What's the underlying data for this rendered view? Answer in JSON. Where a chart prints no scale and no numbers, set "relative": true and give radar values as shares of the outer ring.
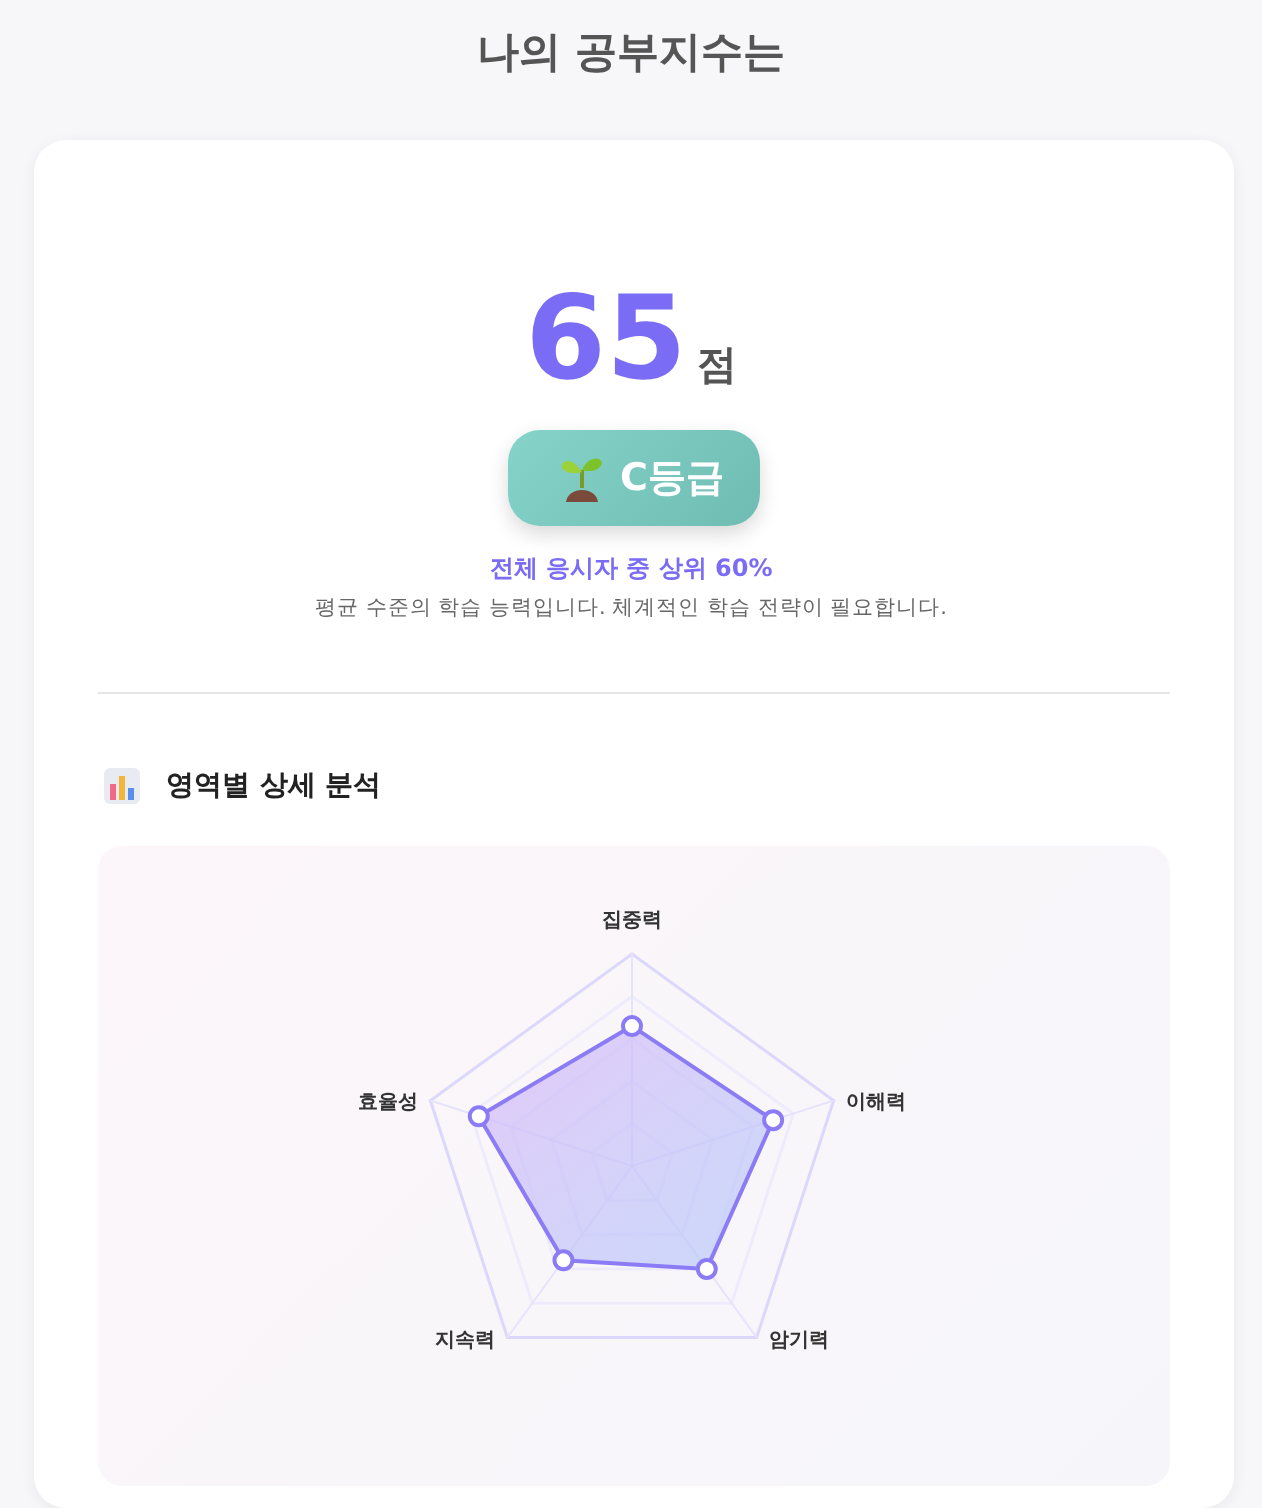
{
  "chart_data": [
    {
      "type": "other",
      "title": "나의 공부지수는",
      "annotations": [
        "65",
        "점",
        "C등급",
        "전체 응시자 중 상위 60%",
        "평균 수준의 학습 능력입니다. 체계적인 학습 전략이 필요합니다."
      ]
    },
    {
      "type": "radar",
      "title": "영역별 상세 분석",
      "categories": [
        "집중력",
        "이해력",
        "암기력",
        "지속력",
        "효율성"
      ],
      "relative": true,
      "marker": "circle",
      "series": [
        {
          "color": "#8b7cf6",
          "values": [
            0.66,
            0.7,
            0.6,
            0.55,
            0.76
          ]
        }
      ]
    }
  ]
}
